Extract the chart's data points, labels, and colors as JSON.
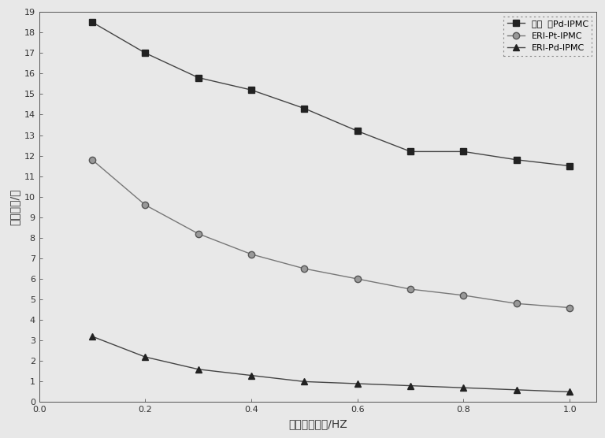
{
  "x": [
    0.1,
    0.2,
    0.3,
    0.4,
    0.5,
    0.6,
    0.7,
    0.8,
    0.9,
    1.0
  ],
  "series1_label": "自制  钟Pd-IPMC",
  "series1_y": [
    18.5,
    17.0,
    15.8,
    15.2,
    14.3,
    13.2,
    12.2,
    12.2,
    11.8,
    11.5
  ],
  "series2_label": "ERI-Pt-IPMC",
  "series2_y": [
    11.8,
    9.6,
    8.2,
    7.2,
    6.5,
    6.0,
    5.5,
    5.2,
    4.8,
    4.6
  ],
  "series3_label": "ERI-Pd-IPMC",
  "series3_y": [
    3.2,
    2.2,
    1.6,
    1.3,
    1.0,
    0.9,
    0.8,
    0.7,
    0.6,
    0.5
  ],
  "xlabel": "驱动电压频率/HZ",
  "ylabel": "末端位移/妆",
  "xlim": [
    0.0,
    1.05
  ],
  "ylim": [
    0,
    19
  ],
  "xticks": [
    0.0,
    0.2,
    0.4,
    0.6,
    0.8,
    1.0
  ],
  "yticks": [
    0,
    1,
    2,
    3,
    4,
    5,
    6,
    7,
    8,
    9,
    10,
    11,
    12,
    13,
    14,
    15,
    16,
    17,
    18,
    19
  ],
  "line_color": "#444444",
  "marker1": "s",
  "marker2": "o",
  "marker3": "^",
  "markersize": 6,
  "legend_fontsize": 8,
  "axis_fontsize": 10,
  "tick_fontsize": 8,
  "background_color": "#e8e8e8",
  "legend_edgecolor": "#888888",
  "legend_loc": "upper right"
}
